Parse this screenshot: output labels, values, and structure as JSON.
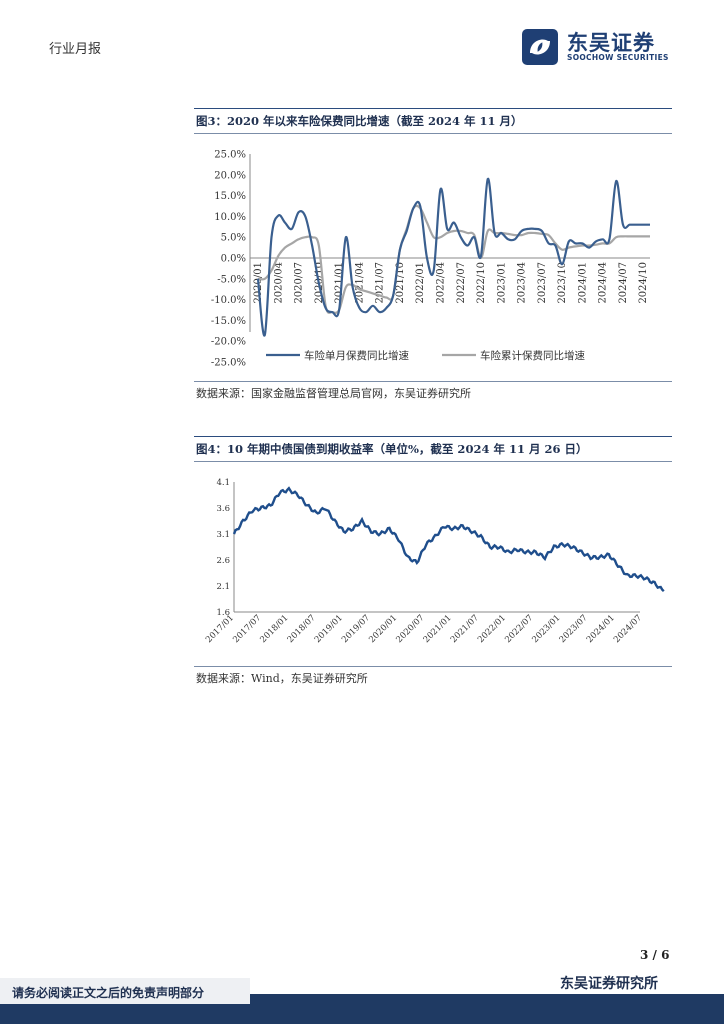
{
  "header": {
    "label": "行业月报"
  },
  "logo": {
    "name_cn": "东吴证券",
    "name_en": "SOOCHOW SECURITIES",
    "icon": "soochow-logo-icon"
  },
  "figure3": {
    "title": "图3：2020 年以来车险保费同比增速（截至 2024 年 11 月）",
    "source": "数据来源：国家金融监督管理总局官网，东吴证券研究所",
    "chart_data": {
      "type": "line",
      "title": "2020 年以来车险保费同比增速（截至 2024 年 11 月）",
      "ylim": [
        -25,
        25
      ],
      "y_ticks": [
        "25.0%",
        "20.0%",
        "15.0%",
        "10.0%",
        "5.0%",
        "0.0%",
        "-5.0%",
        "-10.0%",
        "-15.0%",
        "-20.0%",
        "-25.0%"
      ],
      "x_ticks": [
        "2020/01",
        "2020/04",
        "2020/07",
        "2020/10",
        "2021/01",
        "2021/04",
        "2021/07",
        "2021/10",
        "2022/01",
        "2022/04",
        "2022/07",
        "2022/10",
        "2023/01",
        "2023/04",
        "2023/07",
        "2023/10",
        "2024/01",
        "2024/04",
        "2024/07",
        "2024/10"
      ],
      "x": [
        "2020/01",
        "2020/02",
        "2020/03",
        "2020/04",
        "2020/05",
        "2020/06",
        "2020/07",
        "2020/08",
        "2020/09",
        "2020/10",
        "2020/11",
        "2020/12",
        "2021/01",
        "2021/02",
        "2021/03",
        "2021/04",
        "2021/05",
        "2021/06",
        "2021/07",
        "2021/08",
        "2021/09",
        "2021/10",
        "2021/11",
        "2021/12",
        "2022/01",
        "2022/02",
        "2022/03",
        "2022/04",
        "2022/05",
        "2022/06",
        "2022/07",
        "2022/08",
        "2022/09",
        "2022/10",
        "2022/11",
        "2022/12",
        "2023/01",
        "2023/02",
        "2023/03",
        "2023/04",
        "2023/05",
        "2023/06",
        "2023/07",
        "2023/08",
        "2023/09",
        "2023/10",
        "2023/11",
        "2023/12",
        "2024/01",
        "2024/02",
        "2024/03",
        "2024/04",
        "2024/05",
        "2024/06",
        "2024/07",
        "2024/08",
        "2024/09",
        "2024/10",
        "2024/11"
      ],
      "series": [
        {
          "name": "车险单月保费同比增速",
          "color": "#3a5f8f",
          "values": [
            -5.0,
            -18.5,
            5.0,
            10.2,
            8.5,
            7.0,
            11.0,
            10.0,
            3.0,
            -6.0,
            -12.0,
            -13.0,
            -12.5,
            5.0,
            -7.0,
            -12.0,
            -13.0,
            -11.5,
            -13.0,
            -12.0,
            -9.0,
            2.0,
            6.5,
            12.0,
            12.5,
            0.0,
            -3.0,
            16.5,
            7.0,
            8.5,
            5.0,
            3.0,
            5.0,
            0.5,
            19.0,
            6.0,
            6.0,
            4.5,
            4.5,
            6.5,
            7.0,
            7.0,
            6.5,
            3.5,
            3.0,
            -1.5,
            4.0,
            3.5,
            3.5,
            2.5,
            4.0,
            4.5,
            4.5,
            18.5,
            8.0,
            8.0,
            8.0,
            8.0,
            8.0
          ]
        },
        {
          "name": "车险累计保费同比增速",
          "color": "#a6a6a6",
          "values": [
            -5.0,
            -5.0,
            -3.0,
            0.5,
            2.5,
            3.5,
            4.5,
            5.0,
            5.0,
            3.0,
            -11.5,
            -13.0,
            -12.5,
            -7.0,
            -6.5,
            -7.5,
            -8.0,
            -8.5,
            -9.0,
            -9.5,
            -9.0,
            2.0,
            7.0,
            12.0,
            12.0,
            8.5,
            5.0,
            5.0,
            6.0,
            6.5,
            6.5,
            6.0,
            5.5,
            0.0,
            6.5,
            6.0,
            6.0,
            5.8,
            5.5,
            5.5,
            6.0,
            6.0,
            5.8,
            5.5,
            3.5,
            2.0,
            2.5,
            2.8,
            3.0,
            3.0,
            3.2,
            3.5,
            3.5,
            5.0,
            5.2,
            5.2,
            5.2,
            5.2,
            5.2
          ]
        }
      ],
      "legend": [
        "车险单月保费同比增速",
        "车险累计保费同比增速"
      ]
    }
  },
  "figure4": {
    "title": "图4：10 年期中债国债到期收益率（单位%，截至 2024 年 11 月 26 日）",
    "source": "数据来源：Wind，东吴证券研究所",
    "chart_data": {
      "type": "line",
      "title": "10 年期中债国债到期收益率（单位%，截至 2024 年 11 月 26 日）",
      "ylim": [
        1.6,
        4.1
      ],
      "y_ticks": [
        "4.1",
        "3.6",
        "3.1",
        "2.6",
        "2.1",
        "1.6"
      ],
      "x_ticks": [
        "2017/01",
        "2017/07",
        "2018/01",
        "2018/07",
        "2019/01",
        "2019/07",
        "2020/01",
        "2020/07",
        "2021/01",
        "2021/07",
        "2022/01",
        "2022/07",
        "2023/01",
        "2023/07",
        "2024/01",
        "2024/07"
      ],
      "x": [
        "2017/01",
        "2017/03",
        "2017/05",
        "2017/07",
        "2017/09",
        "2017/11",
        "2018/01",
        "2018/03",
        "2018/05",
        "2018/07",
        "2018/09",
        "2018/11",
        "2019/01",
        "2019/03",
        "2019/05",
        "2019/07",
        "2019/09",
        "2019/11",
        "2020/01",
        "2020/03",
        "2020/05",
        "2020/07",
        "2020/09",
        "2020/11",
        "2021/01",
        "2021/03",
        "2021/05",
        "2021/07",
        "2021/09",
        "2021/11",
        "2022/01",
        "2022/03",
        "2022/05",
        "2022/07",
        "2022/09",
        "2022/11",
        "2023/01",
        "2023/03",
        "2023/05",
        "2023/07",
        "2023/09",
        "2023/11",
        "2024/01",
        "2024/03",
        "2024/05",
        "2024/07",
        "2024/09",
        "2024/11"
      ],
      "series": [
        {
          "name": "10年期中债国债到期收益率",
          "color": "#1f4e8c",
          "values": [
            3.1,
            3.35,
            3.55,
            3.6,
            3.65,
            3.9,
            3.95,
            3.85,
            3.65,
            3.5,
            3.6,
            3.35,
            3.15,
            3.2,
            3.35,
            3.15,
            3.1,
            3.2,
            3.0,
            2.65,
            2.55,
            2.9,
            3.05,
            3.25,
            3.2,
            3.25,
            3.15,
            3.05,
            2.85,
            2.85,
            2.75,
            2.8,
            2.75,
            2.75,
            2.65,
            2.85,
            2.9,
            2.85,
            2.75,
            2.65,
            2.65,
            2.7,
            2.5,
            2.3,
            2.3,
            2.25,
            2.15,
            2.0
          ]
        }
      ]
    }
  },
  "footer": {
    "page": "3 / 6",
    "org": "东吴证券研究所",
    "disclaimer": "请务必阅读正文之后的免责声明部分"
  }
}
